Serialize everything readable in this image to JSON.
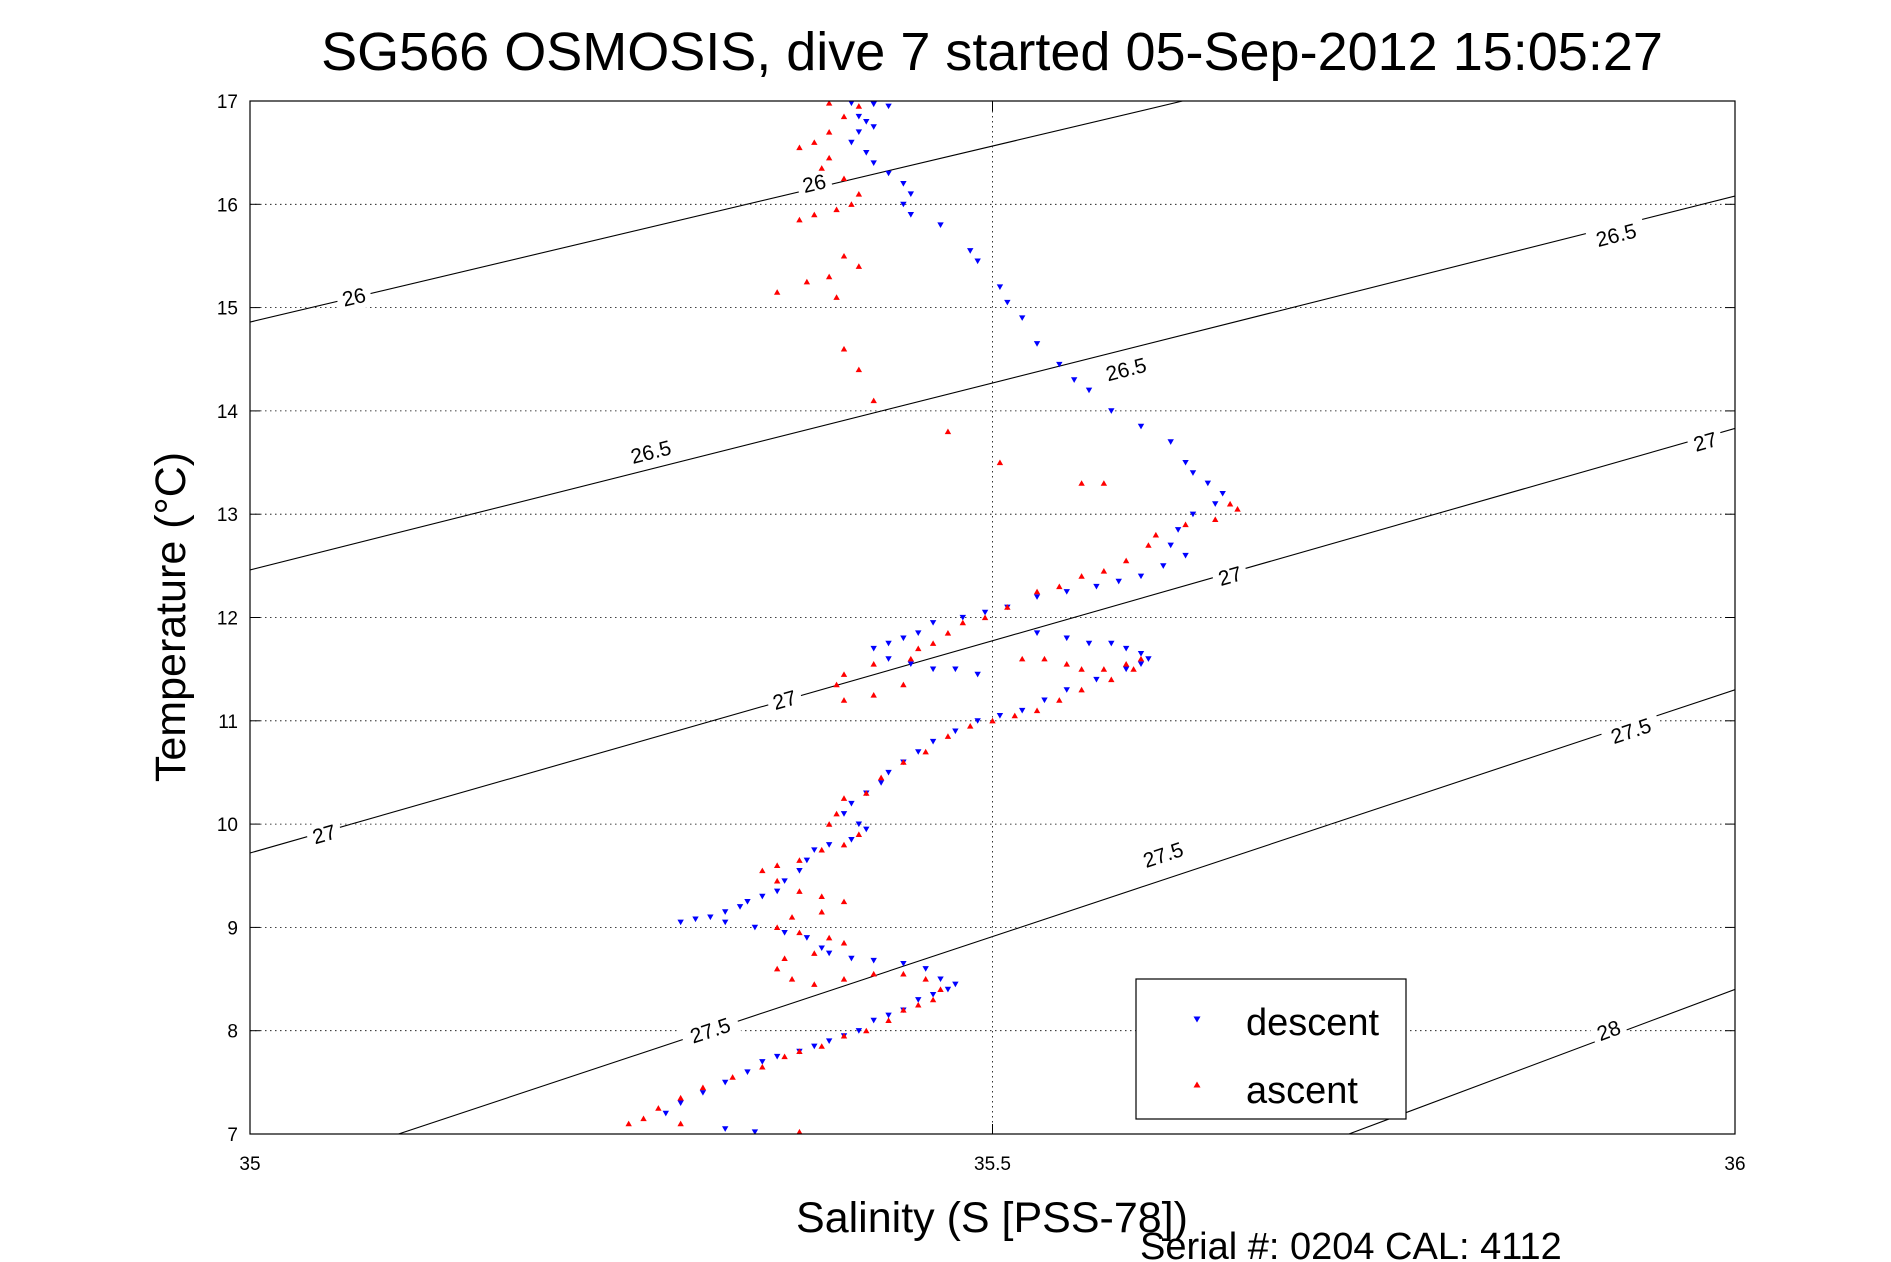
{
  "chart_data": {
    "type": "scatter",
    "title": "SG566 OSMOSIS, dive 7 started 05-Sep-2012 15:05:27",
    "xlabel": "Salinity (S [PSS-78])",
    "ylabel": "Temperature (°C)",
    "xlim": [
      35,
      36
    ],
    "ylim": [
      7,
      17
    ],
    "x_ticks": [
      35,
      35.5,
      36
    ],
    "x_tick_labels": [
      "35",
      "35.5",
      "36"
    ],
    "y_ticks": [
      7,
      8,
      9,
      10,
      11,
      12,
      13,
      14,
      15,
      16,
      17
    ],
    "y_tick_labels": [
      "7",
      "8",
      "9",
      "10",
      "11",
      "12",
      "13",
      "14",
      "15",
      "16",
      "17"
    ],
    "grid": true,
    "legend": {
      "placement": "bottom-right"
    },
    "footer": "Serial #: 0204  CAL: 4112",
    "density_contours": [
      {
        "level": "26",
        "points": [
          [
            35,
            14.86
          ],
          [
            35.628,
            17
          ]
        ],
        "label_positions": [
          [
            35.07,
            15.1
          ],
          [
            35.38,
            16.2
          ]
        ]
      },
      {
        "level": "26.5",
        "points": [
          [
            35,
            12.46
          ],
          [
            36,
            16.08
          ]
        ],
        "label_positions": [
          [
            35.27,
            13.6
          ],
          [
            35.59,
            14.4
          ],
          [
            35.92,
            15.7
          ]
        ]
      },
      {
        "level": "27",
        "points": [
          [
            35,
            9.72
          ],
          [
            36,
            13.83
          ]
        ],
        "label_positions": [
          [
            35.05,
            9.9
          ],
          [
            35.36,
            11.2
          ],
          [
            35.66,
            12.4
          ],
          [
            35.98,
            13.7
          ]
        ]
      },
      {
        "level": "27.5",
        "points": [
          [
            35.1,
            7
          ],
          [
            36,
            11.3
          ]
        ],
        "label_positions": [
          [
            35.31,
            8.0
          ],
          [
            35.615,
            9.7
          ],
          [
            35.93,
            10.9
          ]
        ]
      },
      {
        "level": "28",
        "points": [
          [
            35.74,
            7
          ],
          [
            36,
            8.4
          ]
        ],
        "label_positions": [
          [
            35.915,
            8.0
          ]
        ]
      }
    ],
    "series": [
      {
        "name": "descent",
        "color": "#0000ff",
        "marker": "triangle-down",
        "points": [
          [
            35.405,
            16.98
          ],
          [
            35.42,
            16.97
          ],
          [
            35.43,
            16.95
          ],
          [
            35.41,
            16.85
          ],
          [
            35.415,
            16.8
          ],
          [
            35.42,
            16.75
          ],
          [
            35.41,
            16.7
          ],
          [
            35.405,
            16.6
          ],
          [
            35.415,
            16.5
          ],
          [
            35.42,
            16.4
          ],
          [
            35.43,
            16.3
          ],
          [
            35.44,
            16.2
          ],
          [
            35.445,
            16.1
          ],
          [
            35.44,
            16.0
          ],
          [
            35.445,
            15.9
          ],
          [
            35.465,
            15.8
          ],
          [
            35.485,
            15.55
          ],
          [
            35.49,
            15.45
          ],
          [
            35.505,
            15.2
          ],
          [
            35.51,
            15.05
          ],
          [
            35.52,
            14.9
          ],
          [
            35.53,
            14.65
          ],
          [
            35.545,
            14.45
          ],
          [
            35.555,
            14.3
          ],
          [
            35.565,
            14.2
          ],
          [
            35.58,
            14.0
          ],
          [
            35.6,
            13.85
          ],
          [
            35.62,
            13.7
          ],
          [
            35.63,
            13.5
          ],
          [
            35.635,
            13.4
          ],
          [
            35.645,
            13.3
          ],
          [
            35.655,
            13.2
          ],
          [
            35.65,
            13.1
          ],
          [
            35.635,
            13.0
          ],
          [
            35.625,
            12.85
          ],
          [
            35.62,
            12.7
          ],
          [
            35.63,
            12.6
          ],
          [
            35.615,
            12.5
          ],
          [
            35.6,
            12.4
          ],
          [
            35.585,
            12.35
          ],
          [
            35.57,
            12.3
          ],
          [
            35.55,
            12.25
          ],
          [
            35.53,
            12.2
          ],
          [
            35.51,
            12.1
          ],
          [
            35.495,
            12.05
          ],
          [
            35.48,
            12.0
          ],
          [
            35.46,
            11.95
          ],
          [
            35.45,
            11.85
          ],
          [
            35.44,
            11.8
          ],
          [
            35.43,
            11.75
          ],
          [
            35.42,
            11.7
          ],
          [
            35.43,
            11.6
          ],
          [
            35.445,
            11.55
          ],
          [
            35.46,
            11.5
          ],
          [
            35.475,
            11.5
          ],
          [
            35.49,
            11.45
          ],
          [
            35.53,
            11.85
          ],
          [
            35.55,
            11.8
          ],
          [
            35.565,
            11.75
          ],
          [
            35.58,
            11.75
          ],
          [
            35.59,
            11.7
          ],
          [
            35.6,
            11.65
          ],
          [
            35.605,
            11.6
          ],
          [
            35.6,
            11.55
          ],
          [
            35.59,
            11.5
          ],
          [
            35.57,
            11.4
          ],
          [
            35.55,
            11.3
          ],
          [
            35.535,
            11.2
          ],
          [
            35.52,
            11.1
          ],
          [
            35.505,
            11.05
          ],
          [
            35.49,
            11.0
          ],
          [
            35.475,
            10.9
          ],
          [
            35.46,
            10.8
          ],
          [
            35.45,
            10.7
          ],
          [
            35.44,
            10.6
          ],
          [
            35.43,
            10.5
          ],
          [
            35.425,
            10.4
          ],
          [
            35.415,
            10.3
          ],
          [
            35.405,
            10.2
          ],
          [
            35.4,
            10.1
          ],
          [
            35.41,
            10.0
          ],
          [
            35.415,
            9.95
          ],
          [
            35.405,
            9.85
          ],
          [
            35.39,
            9.8
          ],
          [
            35.38,
            9.75
          ],
          [
            35.375,
            9.65
          ],
          [
            35.37,
            9.55
          ],
          [
            35.36,
            9.45
          ],
          [
            35.355,
            9.35
          ],
          [
            35.345,
            9.3
          ],
          [
            35.335,
            9.25
          ],
          [
            35.33,
            9.2
          ],
          [
            35.32,
            9.15
          ],
          [
            35.31,
            9.1
          ],
          [
            35.3,
            9.08
          ],
          [
            35.29,
            9.05
          ],
          [
            35.32,
            9.05
          ],
          [
            35.34,
            9.0
          ],
          [
            35.36,
            8.95
          ],
          [
            35.375,
            8.9
          ],
          [
            35.385,
            8.8
          ],
          [
            35.39,
            8.75
          ],
          [
            35.405,
            8.7
          ],
          [
            35.42,
            8.68
          ],
          [
            35.44,
            8.65
          ],
          [
            35.455,
            8.6
          ],
          [
            35.465,
            8.5
          ],
          [
            35.475,
            8.45
          ],
          [
            35.47,
            8.4
          ],
          [
            35.46,
            8.35
          ],
          [
            35.45,
            8.3
          ],
          [
            35.44,
            8.2
          ],
          [
            35.43,
            8.15
          ],
          [
            35.42,
            8.1
          ],
          [
            35.41,
            8.0
          ],
          [
            35.4,
            7.95
          ],
          [
            35.39,
            7.9
          ],
          [
            35.38,
            7.85
          ],
          [
            35.37,
            7.8
          ],
          [
            35.355,
            7.75
          ],
          [
            35.345,
            7.7
          ],
          [
            35.335,
            7.6
          ],
          [
            35.32,
            7.5
          ],
          [
            35.305,
            7.4
          ],
          [
            35.29,
            7.3
          ],
          [
            35.28,
            7.2
          ],
          [
            35.32,
            7.05
          ],
          [
            35.34,
            7.02
          ]
        ]
      },
      {
        "name": "ascent",
        "color": "#ff0000",
        "marker": "triangle-up",
        "points": [
          [
            35.39,
            16.98
          ],
          [
            35.41,
            16.95
          ],
          [
            35.4,
            16.85
          ],
          [
            35.39,
            16.7
          ],
          [
            35.38,
            16.6
          ],
          [
            35.37,
            16.55
          ],
          [
            35.39,
            16.45
          ],
          [
            35.385,
            16.35
          ],
          [
            35.4,
            16.25
          ],
          [
            35.41,
            16.1
          ],
          [
            35.405,
            16.0
          ],
          [
            35.395,
            15.95
          ],
          [
            35.38,
            15.9
          ],
          [
            35.37,
            15.85
          ],
          [
            35.4,
            15.5
          ],
          [
            35.41,
            15.4
          ],
          [
            35.39,
            15.3
          ],
          [
            35.375,
            15.25
          ],
          [
            35.395,
            15.1
          ],
          [
            35.4,
            14.6
          ],
          [
            35.41,
            14.4
          ],
          [
            35.42,
            14.1
          ],
          [
            35.355,
            15.15
          ],
          [
            35.47,
            13.8
          ],
          [
            35.505,
            13.5
          ],
          [
            35.56,
            13.3
          ],
          [
            35.575,
            13.3
          ],
          [
            35.66,
            13.1
          ],
          [
            35.665,
            13.05
          ],
          [
            35.65,
            12.95
          ],
          [
            35.63,
            12.9
          ],
          [
            35.61,
            12.8
          ],
          [
            35.605,
            12.7
          ],
          [
            35.59,
            12.55
          ],
          [
            35.575,
            12.45
          ],
          [
            35.56,
            12.4
          ],
          [
            35.545,
            12.3
          ],
          [
            35.53,
            12.25
          ],
          [
            35.51,
            12.1
          ],
          [
            35.495,
            12.0
          ],
          [
            35.48,
            11.95
          ],
          [
            35.47,
            11.85
          ],
          [
            35.46,
            11.75
          ],
          [
            35.45,
            11.7
          ],
          [
            35.445,
            11.6
          ],
          [
            35.42,
            11.55
          ],
          [
            35.4,
            11.45
          ],
          [
            35.395,
            11.35
          ],
          [
            35.4,
            11.2
          ],
          [
            35.42,
            11.25
          ],
          [
            35.44,
            11.35
          ],
          [
            35.52,
            11.6
          ],
          [
            35.535,
            11.6
          ],
          [
            35.55,
            11.55
          ],
          [
            35.56,
            11.5
          ],
          [
            35.575,
            11.5
          ],
          [
            35.59,
            11.55
          ],
          [
            35.6,
            11.6
          ],
          [
            35.595,
            11.5
          ],
          [
            35.58,
            11.4
          ],
          [
            35.56,
            11.3
          ],
          [
            35.545,
            11.2
          ],
          [
            35.53,
            11.1
          ],
          [
            35.515,
            11.05
          ],
          [
            35.5,
            11.0
          ],
          [
            35.485,
            10.95
          ],
          [
            35.47,
            10.85
          ],
          [
            35.455,
            10.7
          ],
          [
            35.44,
            10.6
          ],
          [
            35.425,
            10.45
          ],
          [
            35.415,
            10.3
          ],
          [
            35.4,
            10.25
          ],
          [
            35.395,
            10.1
          ],
          [
            35.39,
            10.0
          ],
          [
            35.41,
            9.9
          ],
          [
            35.4,
            9.8
          ],
          [
            35.385,
            9.75
          ],
          [
            35.37,
            9.65
          ],
          [
            35.355,
            9.6
          ],
          [
            35.345,
            9.55
          ],
          [
            35.355,
            9.45
          ],
          [
            35.37,
            9.35
          ],
          [
            35.385,
            9.3
          ],
          [
            35.4,
            9.25
          ],
          [
            35.385,
            9.15
          ],
          [
            35.365,
            9.1
          ],
          [
            35.355,
            9.0
          ],
          [
            35.37,
            8.95
          ],
          [
            35.39,
            8.9
          ],
          [
            35.4,
            8.85
          ],
          [
            35.38,
            8.75
          ],
          [
            35.36,
            8.7
          ],
          [
            35.355,
            8.6
          ],
          [
            35.365,
            8.5
          ],
          [
            35.38,
            8.45
          ],
          [
            35.4,
            8.5
          ],
          [
            35.42,
            8.55
          ],
          [
            35.44,
            8.55
          ],
          [
            35.455,
            8.5
          ],
          [
            35.465,
            8.4
          ],
          [
            35.46,
            8.3
          ],
          [
            35.45,
            8.25
          ],
          [
            35.44,
            8.2
          ],
          [
            35.43,
            8.1
          ],
          [
            35.415,
            8.0
          ],
          [
            35.4,
            7.95
          ],
          [
            35.385,
            7.85
          ],
          [
            35.37,
            7.8
          ],
          [
            35.36,
            7.75
          ],
          [
            35.345,
            7.65
          ],
          [
            35.325,
            7.55
          ],
          [
            35.305,
            7.45
          ],
          [
            35.29,
            7.35
          ],
          [
            35.275,
            7.25
          ],
          [
            35.265,
            7.15
          ],
          [
            35.255,
            7.1
          ],
          [
            35.29,
            7.1
          ],
          [
            35.37,
            7.02
          ]
        ]
      }
    ]
  }
}
